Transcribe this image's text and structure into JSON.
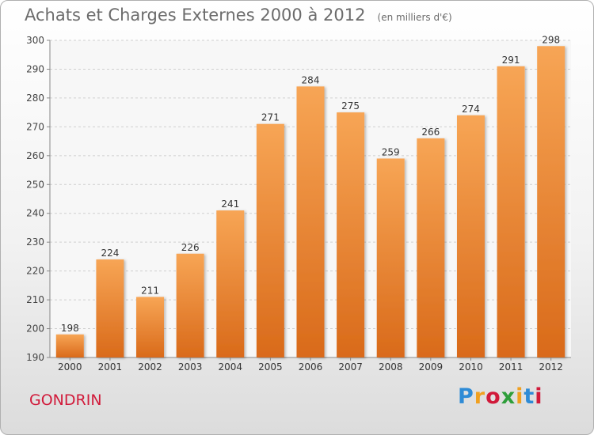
{
  "title": "Achats et Charges Externes 2000 à 2012",
  "unit_note": "(en milliers d'€)",
  "commune": "GONDRIN",
  "logo_text": "Proxiti",
  "colors": {
    "bar_light": "#f7a555",
    "bar_dark": "#d96a1a",
    "title": "#6b6b6b",
    "commune": "#d11a3a",
    "logo": [
      "#2e8bd6",
      "#f0a020",
      "#d11a3a",
      "#2e9e3a",
      "#f0a020",
      "#2e8bd6",
      "#d11a3a"
    ]
  },
  "chart_data": {
    "type": "bar",
    "categories": [
      "2000",
      "2001",
      "2002",
      "2003",
      "2004",
      "2005",
      "2006",
      "2007",
      "2008",
      "2009",
      "2010",
      "2011",
      "2012"
    ],
    "values": [
      198,
      224,
      211,
      226,
      241,
      271,
      284,
      275,
      259,
      266,
      274,
      291,
      298
    ],
    "ylim": [
      190,
      300
    ],
    "yticks": [
      190,
      200,
      210,
      220,
      230,
      240,
      250,
      260,
      270,
      280,
      290,
      300
    ],
    "grid": true,
    "legend": "none"
  }
}
